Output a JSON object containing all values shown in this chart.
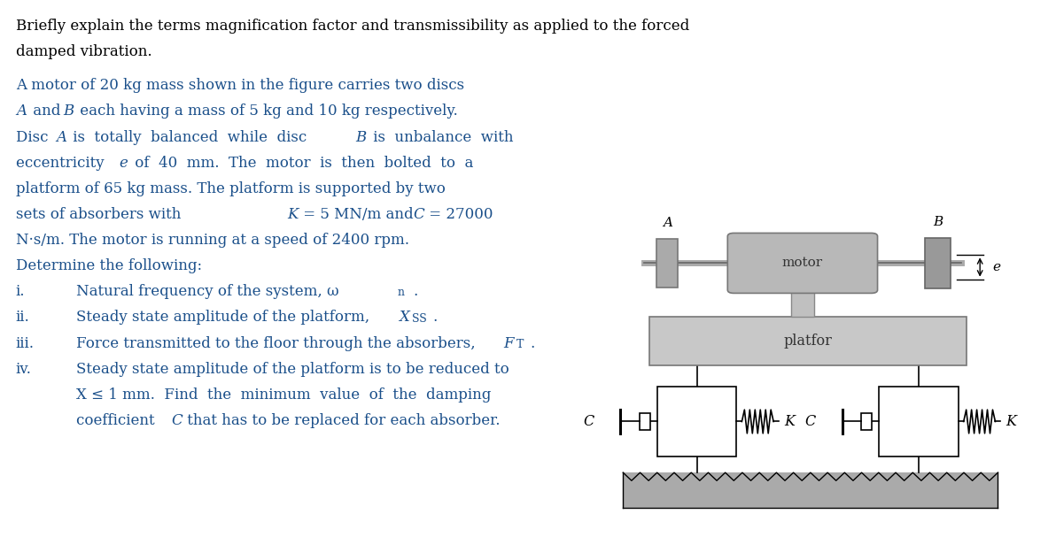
{
  "bg_color": "#ffffff",
  "black": "#000000",
  "blue": "#1a4f8a",
  "gray_dark": "#666666",
  "gray_med": "#999999",
  "gray_light": "#cccccc",
  "gray_platform": "#bbbbbb",
  "gray_ground": "#aaaaaa",
  "fig_width": 11.92,
  "fig_height": 6.07,
  "line1a": "Briefly explain the terms magnification factor and transmissibility as applied to the forced",
  "line1b": "damped vibration.",
  "line2": "A motor of 20 kg mass shown in the figure carries two discs",
  "line3": " and  each having a mass of 5 kg and 10 kg respectively.",
  "line4a": "Disc ",
  "line4b": " is  totally  balanced  while  disc ",
  "line4c": " is  unbalance  with",
  "line5a": "eccentricity ",
  "line5b": " of  40  mm.  The  motor  is  then  bolted  to  a",
  "line6": "platform of 65 kg mass. The platform is supported by two",
  "line7a": "sets of absorbers with",
  "line7b": " = 5 MN/m and ",
  "line7c": " = 27000",
  "line8": "N·s/m. The motor is running at a speed of 2400 rpm.",
  "line9": "Determine the following:",
  "item_i_a": "Natural frequency of the system, ω",
  "item_i_b": "n",
  "item_ii_a": "Steady state amplitude of the platform, ",
  "item_ii_b": "X",
  "item_ii_c": "SS",
  "item_iii_a": "Force transmitted to the floor through the absorbers, ",
  "item_iii_b": "F",
  "item_iii_c": "T",
  "item_iv_1": "Steady state amplitude of the platform is to be reduced to",
  "item_iv_2": "X ≤ 1 mm.  Find  the  minimum  value  of  the  damping",
  "item_iv_3a": "coefficient ",
  "item_iv_3b": " that has to be replaced for each absorber.",
  "fs": 12.0,
  "fs_sub": 9.0,
  "lh": 0.048
}
